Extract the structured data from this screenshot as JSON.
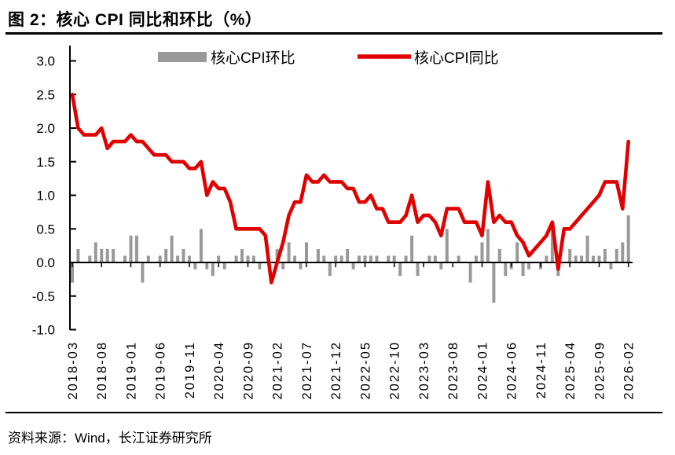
{
  "figure": {
    "title": "图 2：核心 CPI 同比和环比（%）",
    "source_note": "资料来源：Wind，长江证券研究所"
  },
  "colors": {
    "line": "#e00000",
    "bar": "#999999",
    "axis": "#000000",
    "background": "#ffffff"
  },
  "chart_data": {
    "type": "bar+line",
    "title": "核心 CPI 同比和环比（%）",
    "unit": "%",
    "grid": false,
    "legend_position": "top-center",
    "ylim": [
      -1.0,
      3.0
    ],
    "ytick_labels": [
      "3.0",
      "2.5",
      "2.0",
      "1.5",
      "1.0",
      "0.5",
      "0.0",
      "-0.5",
      "-1.0"
    ],
    "x_tick_labels": [
      "2018-03",
      "2018-08",
      "2019-01",
      "2019-06",
      "2019-11",
      "2020-04",
      "2020-09",
      "2021-02",
      "2021-07",
      "2021-12",
      "2022-05",
      "2022-10",
      "2023-03",
      "2023-08",
      "2024-01",
      "2024-06",
      "2024-11",
      "2025-04",
      "2025-09",
      "2026-02"
    ],
    "x": [
      "2018-03",
      "2018-04",
      "2018-05",
      "2018-06",
      "2018-07",
      "2018-08",
      "2018-09",
      "2018-10",
      "2018-11",
      "2018-12",
      "2019-01",
      "2019-02",
      "2019-03",
      "2019-04",
      "2019-05",
      "2019-06",
      "2019-07",
      "2019-08",
      "2019-09",
      "2019-10",
      "2019-11",
      "2019-12",
      "2020-01",
      "2020-02",
      "2020-03",
      "2020-04",
      "2020-05",
      "2020-06",
      "2020-07",
      "2020-08",
      "2020-09",
      "2020-10",
      "2020-11",
      "2020-12",
      "2021-01",
      "2021-02",
      "2021-03",
      "2021-04",
      "2021-05",
      "2021-06",
      "2021-07",
      "2021-08",
      "2021-09",
      "2021-10",
      "2021-11",
      "2021-12",
      "2022-01",
      "2022-02",
      "2022-03",
      "2022-04",
      "2022-05",
      "2022-06",
      "2022-07",
      "2022-08",
      "2022-09",
      "2022-10",
      "2022-11",
      "2022-12",
      "2023-01",
      "2023-02",
      "2023-03",
      "2023-04",
      "2023-05",
      "2023-06",
      "2023-07",
      "2023-08",
      "2023-09",
      "2023-10",
      "2023-11",
      "2023-12",
      "2024-01",
      "2024-02",
      "2024-03",
      "2024-04",
      "2024-05",
      "2024-06",
      "2024-07",
      "2024-08",
      "2024-09",
      "2024-10",
      "2024-11",
      "2024-12",
      "2025-01",
      "2025-02",
      "2025-03",
      "2025-04",
      "2025-05",
      "2025-06",
      "2025-07",
      "2025-08",
      "2025-09",
      "2025-10",
      "2025-11",
      "2025-12",
      "2026-01",
      "2026-02"
    ],
    "series": [
      {
        "name": "核心CPI环比",
        "type": "bar",
        "color": "#999999",
        "values": [
          -0.3,
          0.2,
          0.0,
          0.1,
          0.3,
          0.2,
          0.2,
          0.2,
          0.0,
          0.1,
          0.4,
          0.4,
          -0.3,
          0.1,
          0.0,
          0.1,
          0.2,
          0.4,
          0.1,
          0.2,
          0.1,
          -0.1,
          0.5,
          -0.1,
          -0.2,
          0.1,
          -0.1,
          0.0,
          0.1,
          0.2,
          0.1,
          0.1,
          -0.1,
          0.0,
          0.0,
          0.2,
          -0.1,
          0.3,
          0.1,
          -0.1,
          0.3,
          0.0,
          0.2,
          0.1,
          -0.2,
          0.1,
          0.1,
          0.2,
          -0.1,
          0.1,
          0.1,
          0.1,
          0.1,
          0.0,
          0.1,
          0.1,
          -0.2,
          0.1,
          0.4,
          -0.2,
          0.0,
          0.1,
          0.1,
          -0.1,
          0.5,
          0.0,
          0.1,
          0.0,
          -0.3,
          0.1,
          0.3,
          0.5,
          -0.6,
          0.2,
          -0.2,
          -0.1,
          0.3,
          -0.2,
          -0.1,
          0.0,
          -0.1,
          0.1,
          0.5,
          -0.2,
          0.0,
          0.2,
          0.1,
          0.1,
          0.4,
          0.1,
          0.1,
          0.2,
          -0.1,
          0.2,
          0.3,
          0.7
        ]
      },
      {
        "name": "核心CPI同比",
        "type": "line",
        "color": "#e00000",
        "values": [
          2.5,
          2.0,
          1.9,
          1.9,
          1.9,
          2.0,
          1.7,
          1.8,
          1.8,
          1.8,
          1.9,
          1.8,
          1.8,
          1.7,
          1.6,
          1.6,
          1.6,
          1.5,
          1.5,
          1.5,
          1.4,
          1.4,
          1.5,
          1.0,
          1.2,
          1.1,
          1.1,
          0.9,
          0.5,
          0.5,
          0.5,
          0.5,
          0.5,
          0.4,
          -0.3,
          0.0,
          0.3,
          0.7,
          0.9,
          0.9,
          1.3,
          1.2,
          1.2,
          1.3,
          1.2,
          1.2,
          1.2,
          1.1,
          1.1,
          0.9,
          0.9,
          1.0,
          0.8,
          0.8,
          0.6,
          0.6,
          0.6,
          0.7,
          1.0,
          0.6,
          0.7,
          0.7,
          0.6,
          0.4,
          0.8,
          0.8,
          0.8,
          0.6,
          0.6,
          0.6,
          0.4,
          1.2,
          0.6,
          0.7,
          0.6,
          0.6,
          0.4,
          0.3,
          0.1,
          0.2,
          0.3,
          0.4,
          0.6,
          -0.1,
          0.5,
          0.5,
          0.6,
          0.7,
          0.8,
          0.9,
          1.0,
          1.2,
          1.2,
          1.2,
          0.8,
          1.8
        ]
      }
    ]
  }
}
